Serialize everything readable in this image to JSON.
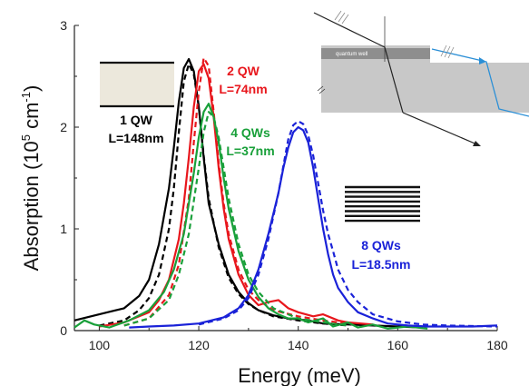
{
  "chart_data": {
    "type": "line",
    "xlabel": "Energy (meV)",
    "ylabel_main": "Absorption (10",
    "ylabel_exp": "5",
    "ylabel_unit": " cm",
    "ylabel_unit_exp": "-1",
    "ylabel_close": ")",
    "xlim": [
      95,
      180
    ],
    "ylim": [
      0,
      3
    ],
    "xticks": [
      100,
      120,
      140,
      160,
      180
    ],
    "yticks": [
      0,
      1,
      2,
      3
    ],
    "grid": false,
    "series": [
      {
        "color": "#000000",
        "style": "solid",
        "points": [
          [
            95,
            0.1
          ],
          [
            100,
            0.16
          ],
          [
            105,
            0.22
          ],
          [
            108,
            0.34
          ],
          [
            110,
            0.5
          ],
          [
            112,
            0.85
          ],
          [
            114,
            1.4
          ],
          [
            115,
            1.8
          ],
          [
            116,
            2.25
          ],
          [
            117,
            2.58
          ],
          [
            118,
            2.67
          ],
          [
            119,
            2.55
          ],
          [
            120,
            2.2
          ],
          [
            121,
            1.7
          ],
          [
            122,
            1.25
          ],
          [
            124,
            0.85
          ],
          [
            126,
            0.55
          ],
          [
            128,
            0.38
          ],
          [
            130,
            0.27
          ],
          [
            132,
            0.2
          ],
          [
            135,
            0.15
          ],
          [
            138,
            0.12
          ],
          [
            142,
            0.1
          ],
          [
            145,
            0.07
          ],
          [
            150,
            0.06
          ],
          [
            155,
            0.05
          ],
          [
            160,
            0.04
          ],
          [
            165,
            0.03
          ]
        ]
      },
      {
        "color": "#000000",
        "style": "dashed",
        "points": [
          [
            100,
            0.05
          ],
          [
            105,
            0.1
          ],
          [
            108,
            0.2
          ],
          [
            110,
            0.32
          ],
          [
            112,
            0.55
          ],
          [
            114,
            1.0
          ],
          [
            115,
            1.4
          ],
          [
            116,
            1.95
          ],
          [
            117,
            2.45
          ],
          [
            118,
            2.62
          ],
          [
            119,
            2.52
          ],
          [
            120,
            2.2
          ],
          [
            121,
            1.72
          ],
          [
            122,
            1.3
          ],
          [
            124,
            0.82
          ],
          [
            126,
            0.52
          ],
          [
            128,
            0.36
          ],
          [
            130,
            0.26
          ],
          [
            132,
            0.2
          ],
          [
            135,
            0.14
          ],
          [
            140,
            0.1
          ],
          [
            145,
            0.07
          ],
          [
            150,
            0.05
          ]
        ]
      },
      {
        "color": "#e8161c",
        "style": "solid",
        "points": [
          [
            100,
            0.04
          ],
          [
            105,
            0.08
          ],
          [
            110,
            0.18
          ],
          [
            112,
            0.3
          ],
          [
            114,
            0.5
          ],
          [
            116,
            0.9
          ],
          [
            117,
            1.25
          ],
          [
            118,
            1.7
          ],
          [
            119,
            2.2
          ],
          [
            120,
            2.55
          ],
          [
            121,
            2.62
          ],
          [
            122,
            2.48
          ],
          [
            123,
            2.1
          ],
          [
            124,
            1.6
          ],
          [
            125,
            1.2
          ],
          [
            126,
            0.9
          ],
          [
            128,
            0.55
          ],
          [
            130,
            0.35
          ],
          [
            132,
            0.25
          ],
          [
            134,
            0.28
          ],
          [
            136,
            0.3
          ],
          [
            138,
            0.22
          ],
          [
            140,
            0.18
          ],
          [
            143,
            0.14
          ],
          [
            145,
            0.16
          ],
          [
            148,
            0.1
          ],
          [
            150,
            0.08
          ],
          [
            155,
            0.06
          ]
        ]
      },
      {
        "color": "#e8161c",
        "style": "dashed",
        "points": [
          [
            105,
            0.05
          ],
          [
            110,
            0.12
          ],
          [
            114,
            0.35
          ],
          [
            116,
            0.65
          ],
          [
            118,
            1.3
          ],
          [
            119,
            1.85
          ],
          [
            120,
            2.35
          ],
          [
            121,
            2.68
          ],
          [
            122,
            2.6
          ],
          [
            123,
            2.15
          ],
          [
            124,
            1.65
          ],
          [
            125,
            1.25
          ],
          [
            126,
            0.95
          ],
          [
            128,
            0.6
          ],
          [
            130,
            0.4
          ],
          [
            132,
            0.3
          ],
          [
            135,
            0.2
          ],
          [
            140,
            0.14
          ],
          [
            145,
            0.1
          ],
          [
            150,
            0.07
          ]
        ]
      },
      {
        "color": "#19a03a",
        "style": "solid",
        "points": [
          [
            95,
            0.03
          ],
          [
            97,
            0.1
          ],
          [
            99,
            0.06
          ],
          [
            102,
            0.03
          ],
          [
            106,
            0.1
          ],
          [
            110,
            0.2
          ],
          [
            113,
            0.38
          ],
          [
            115,
            0.6
          ],
          [
            117,
            0.95
          ],
          [
            118,
            1.25
          ],
          [
            119,
            1.55
          ],
          [
            120,
            1.9
          ],
          [
            121,
            2.15
          ],
          [
            122,
            2.23
          ],
          [
            123,
            2.1
          ],
          [
            124,
            1.85
          ],
          [
            125,
            1.5
          ],
          [
            126,
            1.2
          ],
          [
            128,
            0.78
          ],
          [
            130,
            0.5
          ],
          [
            132,
            0.33
          ],
          [
            134,
            0.22
          ],
          [
            136,
            0.16
          ],
          [
            138,
            0.12
          ],
          [
            140,
            0.12
          ],
          [
            142,
            0.08
          ],
          [
            145,
            0.12
          ],
          [
            147,
            0.04
          ],
          [
            150,
            0.08
          ],
          [
            152,
            0.03
          ],
          [
            155,
            0.06
          ],
          [
            158,
            0.02
          ],
          [
            162,
            0.04
          ],
          [
            166,
            0.02
          ]
        ]
      },
      {
        "color": "#19a03a",
        "style": "dashed",
        "points": [
          [
            105,
            0.05
          ],
          [
            110,
            0.12
          ],
          [
            114,
            0.3
          ],
          [
            116,
            0.55
          ],
          [
            118,
            0.95
          ],
          [
            120,
            1.6
          ],
          [
            121,
            1.95
          ],
          [
            122,
            2.15
          ],
          [
            123,
            2.1
          ],
          [
            124,
            1.9
          ],
          [
            125,
            1.6
          ],
          [
            126,
            1.3
          ],
          [
            128,
            0.85
          ],
          [
            130,
            0.55
          ],
          [
            132,
            0.38
          ],
          [
            135,
            0.22
          ],
          [
            140,
            0.12
          ],
          [
            145,
            0.08
          ],
          [
            150,
            0.05
          ]
        ]
      },
      {
        "color": "#1a22d8",
        "style": "solid",
        "points": [
          [
            106,
            0.03
          ],
          [
            110,
            0.04
          ],
          [
            115,
            0.05
          ],
          [
            120,
            0.07
          ],
          [
            125,
            0.13
          ],
          [
            128,
            0.22
          ],
          [
            130,
            0.35
          ],
          [
            132,
            0.6
          ],
          [
            134,
            0.95
          ],
          [
            136,
            1.35
          ],
          [
            137,
            1.6
          ],
          [
            138,
            1.8
          ],
          [
            139,
            1.95
          ],
          [
            140,
            2.0
          ],
          [
            141,
            1.97
          ],
          [
            142,
            1.85
          ],
          [
            143,
            1.6
          ],
          [
            144,
            1.3
          ],
          [
            145,
            1.0
          ],
          [
            146,
            0.75
          ],
          [
            147,
            0.55
          ],
          [
            148,
            0.42
          ],
          [
            150,
            0.28
          ],
          [
            152,
            0.18
          ],
          [
            155,
            0.12
          ],
          [
            158,
            0.07
          ],
          [
            162,
            0.05
          ],
          [
            166,
            0.04
          ],
          [
            170,
            0.04
          ],
          [
            175,
            0.04
          ],
          [
            180,
            0.05
          ]
        ]
      },
      {
        "color": "#1a22d8",
        "style": "dashed",
        "points": [
          [
            120,
            0.06
          ],
          [
            125,
            0.12
          ],
          [
            128,
            0.2
          ],
          [
            130,
            0.32
          ],
          [
            132,
            0.55
          ],
          [
            134,
            0.9
          ],
          [
            136,
            1.35
          ],
          [
            137,
            1.62
          ],
          [
            138,
            1.88
          ],
          [
            139,
            2.02
          ],
          [
            140,
            2.06
          ],
          [
            141,
            2.03
          ],
          [
            142,
            1.92
          ],
          [
            143,
            1.72
          ],
          [
            144,
            1.45
          ],
          [
            145,
            1.18
          ],
          [
            146,
            0.95
          ],
          [
            147,
            0.78
          ],
          [
            148,
            0.6
          ],
          [
            150,
            0.4
          ],
          [
            152,
            0.28
          ],
          [
            155,
            0.16
          ],
          [
            160,
            0.09
          ],
          [
            165,
            0.06
          ],
          [
            170,
            0.05
          ],
          [
            180,
            0.04
          ]
        ]
      }
    ],
    "annotations": [
      {
        "lines": [
          "1 QW",
          "L=148nm"
        ],
        "color": "#000000"
      },
      {
        "lines": [
          "2 QW",
          "L=74nm"
        ],
        "color": "#e8161c"
      },
      {
        "lines": [
          "4 QWs",
          "L=37nm"
        ],
        "color": "#19a03a"
      },
      {
        "lines": [
          "8 QWs",
          "L=18.5nm"
        ],
        "color": "#1a22d8"
      }
    ],
    "inset": {
      "well_label": "quantum well",
      "colors": {
        "slab": "#c8c8c8",
        "well": "#8e8e8e",
        "ray_black": "#222222",
        "ray_blue": "#2b8fd6"
      }
    }
  }
}
